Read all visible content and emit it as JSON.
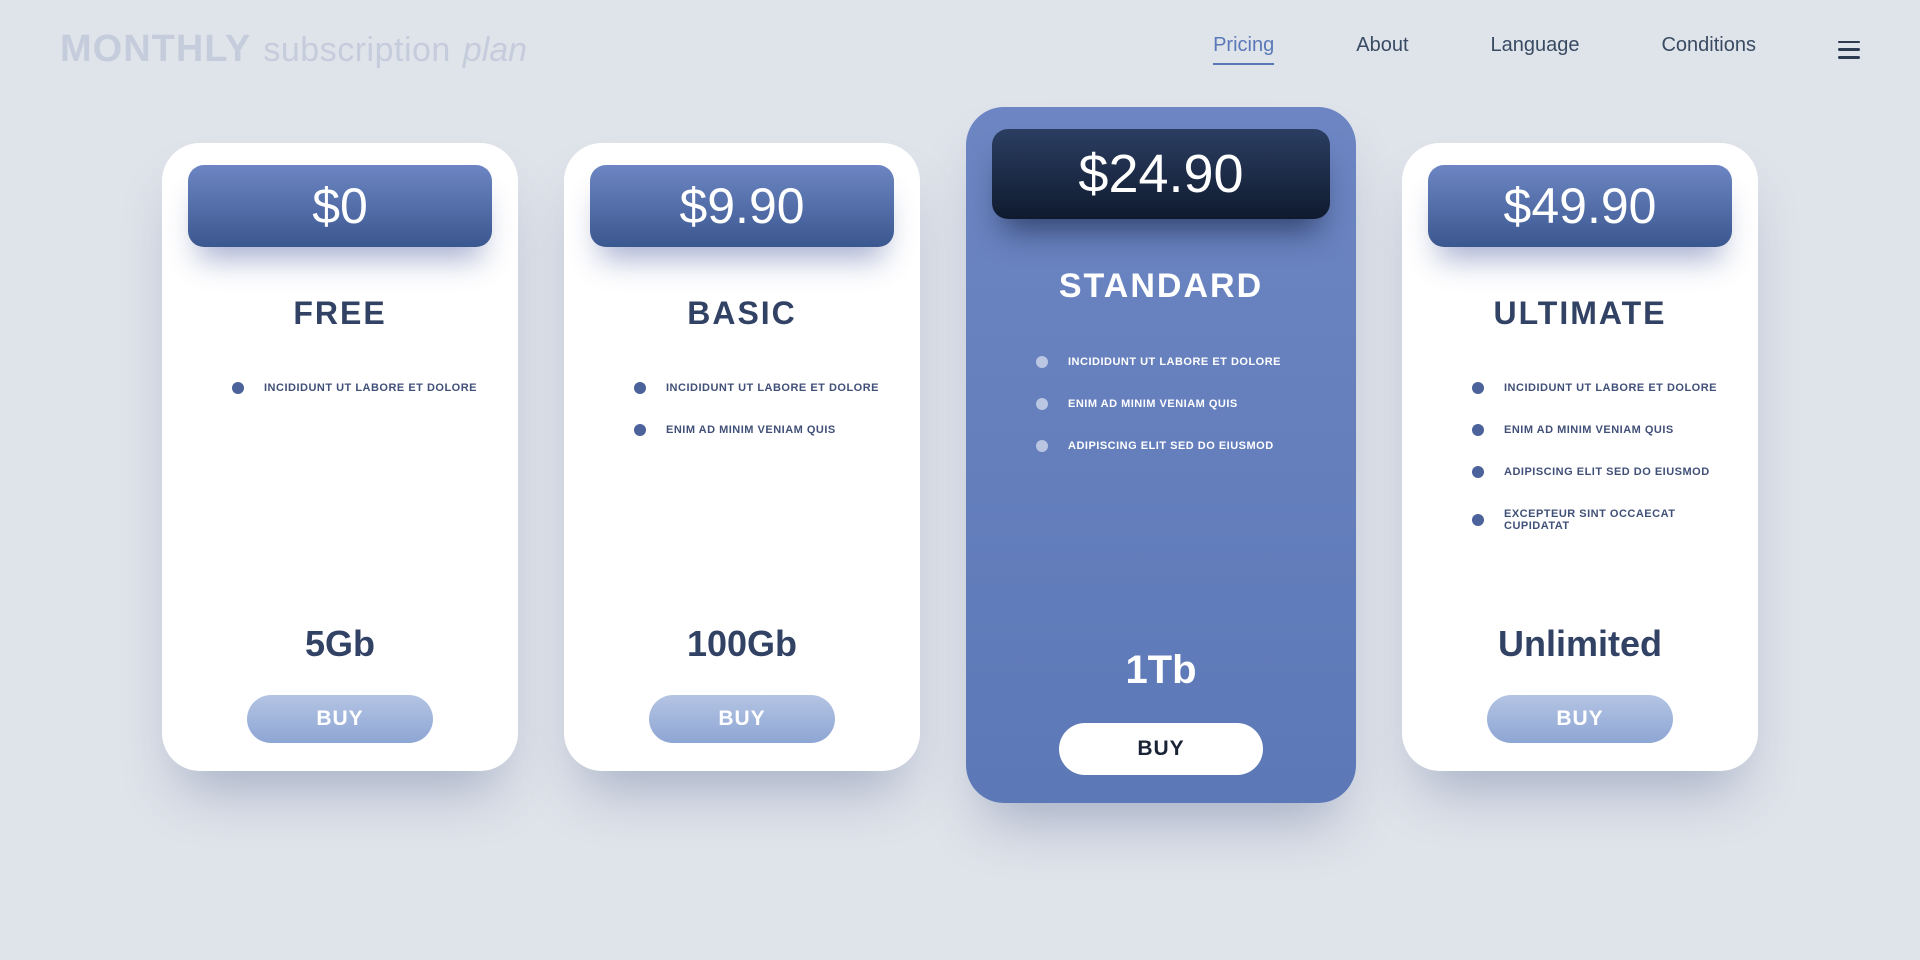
{
  "colors": {
    "page_bg": "#dfe3ea",
    "nav_text": "#394b63",
    "nav_active": "#5b79b8",
    "card_bg": "#ffffff",
    "featured_bg_top": "#6d86c3",
    "featured_bg_bottom": "#5c78b6",
    "pill_top": "#6d86c3",
    "pill_bottom": "#3b578f",
    "featured_pill_top": "#2b3e62",
    "featured_pill_bottom": "#0f1a2e",
    "plan_name": "#314264",
    "bullet": "#4b629a",
    "buy_top": "#b4c4e3",
    "buy_bottom": "#8ea6d4"
  },
  "header": {
    "logo": {
      "strong": "MONTHLY",
      "mid": "subscription",
      "em": "plan"
    },
    "nav": [
      {
        "label": "Pricing",
        "active": true
      },
      {
        "label": "About",
        "active": false
      },
      {
        "label": "Language",
        "active": false
      },
      {
        "label": "Conditions",
        "active": false
      }
    ]
  },
  "plans": [
    {
      "price": "$0",
      "name": "FREE",
      "featured": false,
      "storage": "5Gb",
      "buy": "BUY",
      "features": [
        "INCIDIDUNT UT LABORE ET DOLORE"
      ]
    },
    {
      "price": "$9.90",
      "name": "BASIC",
      "featured": false,
      "storage": "100Gb",
      "buy": "BUY",
      "features": [
        "INCIDIDUNT UT LABORE ET DOLORE",
        "ENIM AD MINIM VENIAM QUIS"
      ]
    },
    {
      "price": "$24.90",
      "name": "STANDARD",
      "featured": true,
      "storage": "1Tb",
      "buy": "BUY",
      "features": [
        "INCIDIDUNT UT LABORE ET DOLORE",
        "ENIM AD MINIM VENIAM QUIS",
        "ADIPISCING ELIT SED DO EIUSMOD"
      ]
    },
    {
      "price": "$49.90",
      "name": "ULTIMATE",
      "featured": false,
      "storage": "Unlimited",
      "buy": "BUY",
      "features": [
        "INCIDIDUNT UT LABORE ET DOLORE",
        "ENIM AD MINIM VENIAM QUIS",
        "ADIPISCING ELIT SED DO EIUSMOD",
        "EXCEPTEUR SINT OCCAECAT CUPIDATAT"
      ]
    }
  ]
}
